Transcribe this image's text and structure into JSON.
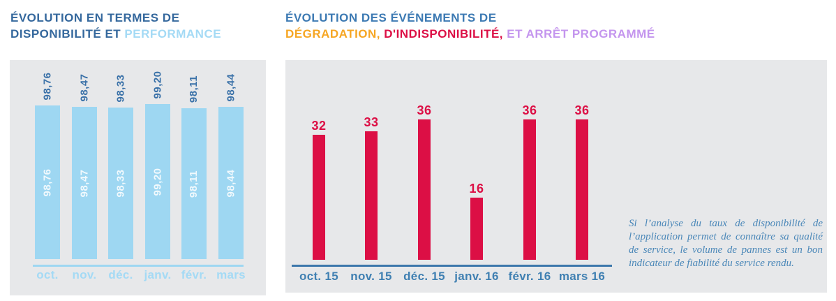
{
  "titles": {
    "left": {
      "line1": "ÉVOLUTION EN TERMES DE",
      "line2_dark": "DISPONIBILITÉ ET ",
      "line2_light": "PERFORMANCE"
    },
    "right": {
      "line1": "ÉVOLUTION DES ÉVÉNEMENTS DE",
      "line2_orange": "DÉGRADATION, ",
      "line2_red": "D'INDISPONIBILITÉ, ",
      "line2_lavender": "ET ARRÊT PROGRAMMÉ"
    }
  },
  "chart_data": [
    {
      "type": "bar",
      "title": "ÉVOLUTION EN TERMES DE DISPONIBILITÉ ET PERFORMANCE",
      "categories": [
        "oct.",
        "nov.",
        "déc.",
        "janv.",
        "févr.",
        "mars"
      ],
      "values": [
        98.76,
        98.47,
        98.33,
        99.2,
        98.11,
        98.44
      ],
      "value_labels": [
        "98,76",
        "98,47",
        "98,33",
        "99,20",
        "98,11",
        "98,44"
      ],
      "ylim": [
        0,
        100
      ],
      "axis_truncated": true,
      "grid": false,
      "legend": "none",
      "xlabel": "",
      "ylabel": "",
      "notes": "value printed twice per bar: dark blue rotated above bar, white rotated inside bar"
    },
    {
      "type": "bar",
      "title": "ÉVOLUTION DES ÉVÉNEMENTS DE DÉGRADATION, D'INDISPONIBILITÉ, ET ARRÊT PROGRAMMÉ",
      "categories": [
        "oct. 15",
        "nov. 15",
        "déc. 15",
        "janv. 16",
        "févr. 16",
        "mars 16"
      ],
      "values": [
        32,
        33,
        36,
        16,
        36,
        36
      ],
      "ylim": [
        0,
        36
      ],
      "axis_truncated": false,
      "grid": false,
      "legend": "none",
      "xlabel": "",
      "ylabel": "",
      "notes": "red value label above each bar"
    }
  ],
  "annotation": {
    "text": "Si l’analyse du taux de disponibilité de l’application permet de connaître sa qualité de service, le volume de pannes est un bon indicateur de fiabilité du service rendu."
  },
  "colors": {
    "panel_bg": "#e7e8ea",
    "title_dark_blue": "#35689d",
    "title_blue": "#3d7ab3",
    "orange": "#f6a623",
    "red": "#dc0f45",
    "lavender": "#c495ee",
    "light_blue": "#9ed7f2",
    "light_blue_text": "#a4daf5",
    "value_dark_blue": "#3a71a8",
    "white_inner_label": "rgba(255,255,255,0.85)",
    "steel_blue": "#3c77ab",
    "month_blue": "#4080b2",
    "annotation_blue": "#4a87b8"
  }
}
